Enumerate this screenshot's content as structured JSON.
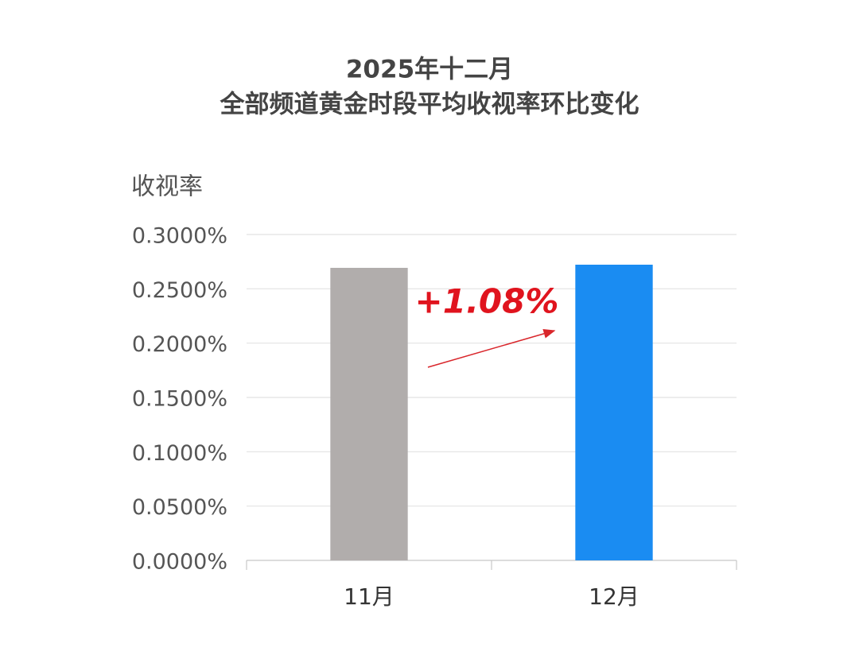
{
  "chart_data": {
    "type": "bar",
    "title": [
      "2025年十二月",
      "全部频道黄金时段平均收视率环比变化"
    ],
    "y_label": "收视率",
    "categories": [
      "11月",
      "12月"
    ],
    "values": [
      0.2693,
      0.2722
    ],
    "colors": [
      "#b1adac",
      "#1a8cf2"
    ],
    "ylim": [
      0,
      0.3
    ],
    "yticks": [
      {
        "value": 0,
        "label": "0.0000%"
      },
      {
        "value": 0.05,
        "label": "0.0500%"
      },
      {
        "value": 0.1,
        "label": "0.1000%"
      },
      {
        "value": 0.15,
        "label": "0.1500%"
      },
      {
        "value": 0.2,
        "label": "0.2000%"
      },
      {
        "value": 0.25,
        "label": "0.2500%"
      },
      {
        "value": 0.3,
        "label": "0.3000%"
      }
    ],
    "grid": true,
    "annotation": "+1.08%"
  }
}
